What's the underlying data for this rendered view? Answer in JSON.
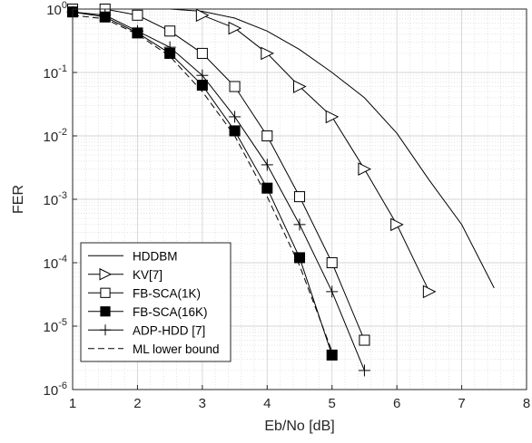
{
  "chart_data": {
    "type": "line",
    "xlabel": "Eb/No [dB]",
    "ylabel": "FER",
    "xlim": [
      1,
      8
    ],
    "ylim_log10": [
      -6,
      0
    ],
    "yscale": "log",
    "grid": true,
    "minor_grid": true,
    "legend_position": "bottom-left",
    "x_ticks": [
      "1",
      "2",
      "3",
      "4",
      "5",
      "6",
      "7",
      "8"
    ],
    "y_ticks": [
      {
        "base": "10",
        "exp": "0"
      },
      {
        "base": "10",
        "exp": "-1"
      },
      {
        "base": "10",
        "exp": "-2"
      },
      {
        "base": "10",
        "exp": "-3"
      },
      {
        "base": "10",
        "exp": "-4"
      },
      {
        "base": "10",
        "exp": "-5"
      },
      {
        "base": "10",
        "exp": "-6"
      }
    ],
    "series": [
      {
        "name": "HDDBM",
        "marker": "none",
        "dash": "solid",
        "x": [
          1,
          1.5,
          2,
          2.5,
          3,
          3.5,
          4,
          4.5,
          5,
          5.5,
          6,
          6.5,
          7,
          7.5
        ],
        "y": [
          1.0,
          1.0,
          1.0,
          1.0,
          0.92,
          0.72,
          0.45,
          0.23,
          0.1,
          0.04,
          0.011,
          0.002,
          0.0004,
          4e-05
        ]
      },
      {
        "name": "KV[7]",
        "marker": "triangle-right",
        "dash": "solid",
        "x": [
          3,
          3.5,
          4,
          4.5,
          5,
          5.5,
          6,
          6.5
        ],
        "y": [
          0.8,
          0.5,
          0.2,
          0.06,
          0.02,
          0.003,
          0.0004,
          3.5e-05
        ]
      },
      {
        "name": "FB-SCA(1K)",
        "marker": "open-square",
        "dash": "solid",
        "x": [
          1,
          1.5,
          2,
          2.5,
          3,
          3.5,
          4,
          4.5,
          5,
          5.5
        ],
        "y": [
          1.0,
          1.0,
          0.8,
          0.45,
          0.2,
          0.06,
          0.01,
          0.0011,
          0.0001,
          6e-06
        ]
      },
      {
        "name": "FB-SCA(16K)",
        "marker": "filled-square",
        "dash": "solid",
        "x": [
          1,
          1.5,
          2,
          2.5,
          3,
          3.5,
          4,
          4.5,
          5
        ],
        "y": [
          0.9,
          0.75,
          0.42,
          0.2,
          0.063,
          0.012,
          0.0015,
          0.00012,
          3.5e-06
        ]
      },
      {
        "name": "ADP-HDD [7]",
        "marker": "plus",
        "dash": "solid",
        "x": [
          1,
          1.5,
          2,
          2.5,
          3,
          3.5,
          4,
          4.5,
          5,
          5.5
        ],
        "y": [
          0.9,
          0.8,
          0.45,
          0.25,
          0.09,
          0.02,
          0.0035,
          0.0004,
          3.5e-05,
          2e-06
        ]
      },
      {
        "name": "ML lower bound",
        "marker": "none",
        "dash": "dashed",
        "x": [
          1,
          1.5,
          2,
          2.5,
          3,
          3.5,
          4,
          4.5,
          5
        ],
        "y": [
          0.8,
          0.7,
          0.4,
          0.18,
          0.05,
          0.01,
          0.0011,
          9e-05,
          4e-06
        ]
      }
    ]
  }
}
